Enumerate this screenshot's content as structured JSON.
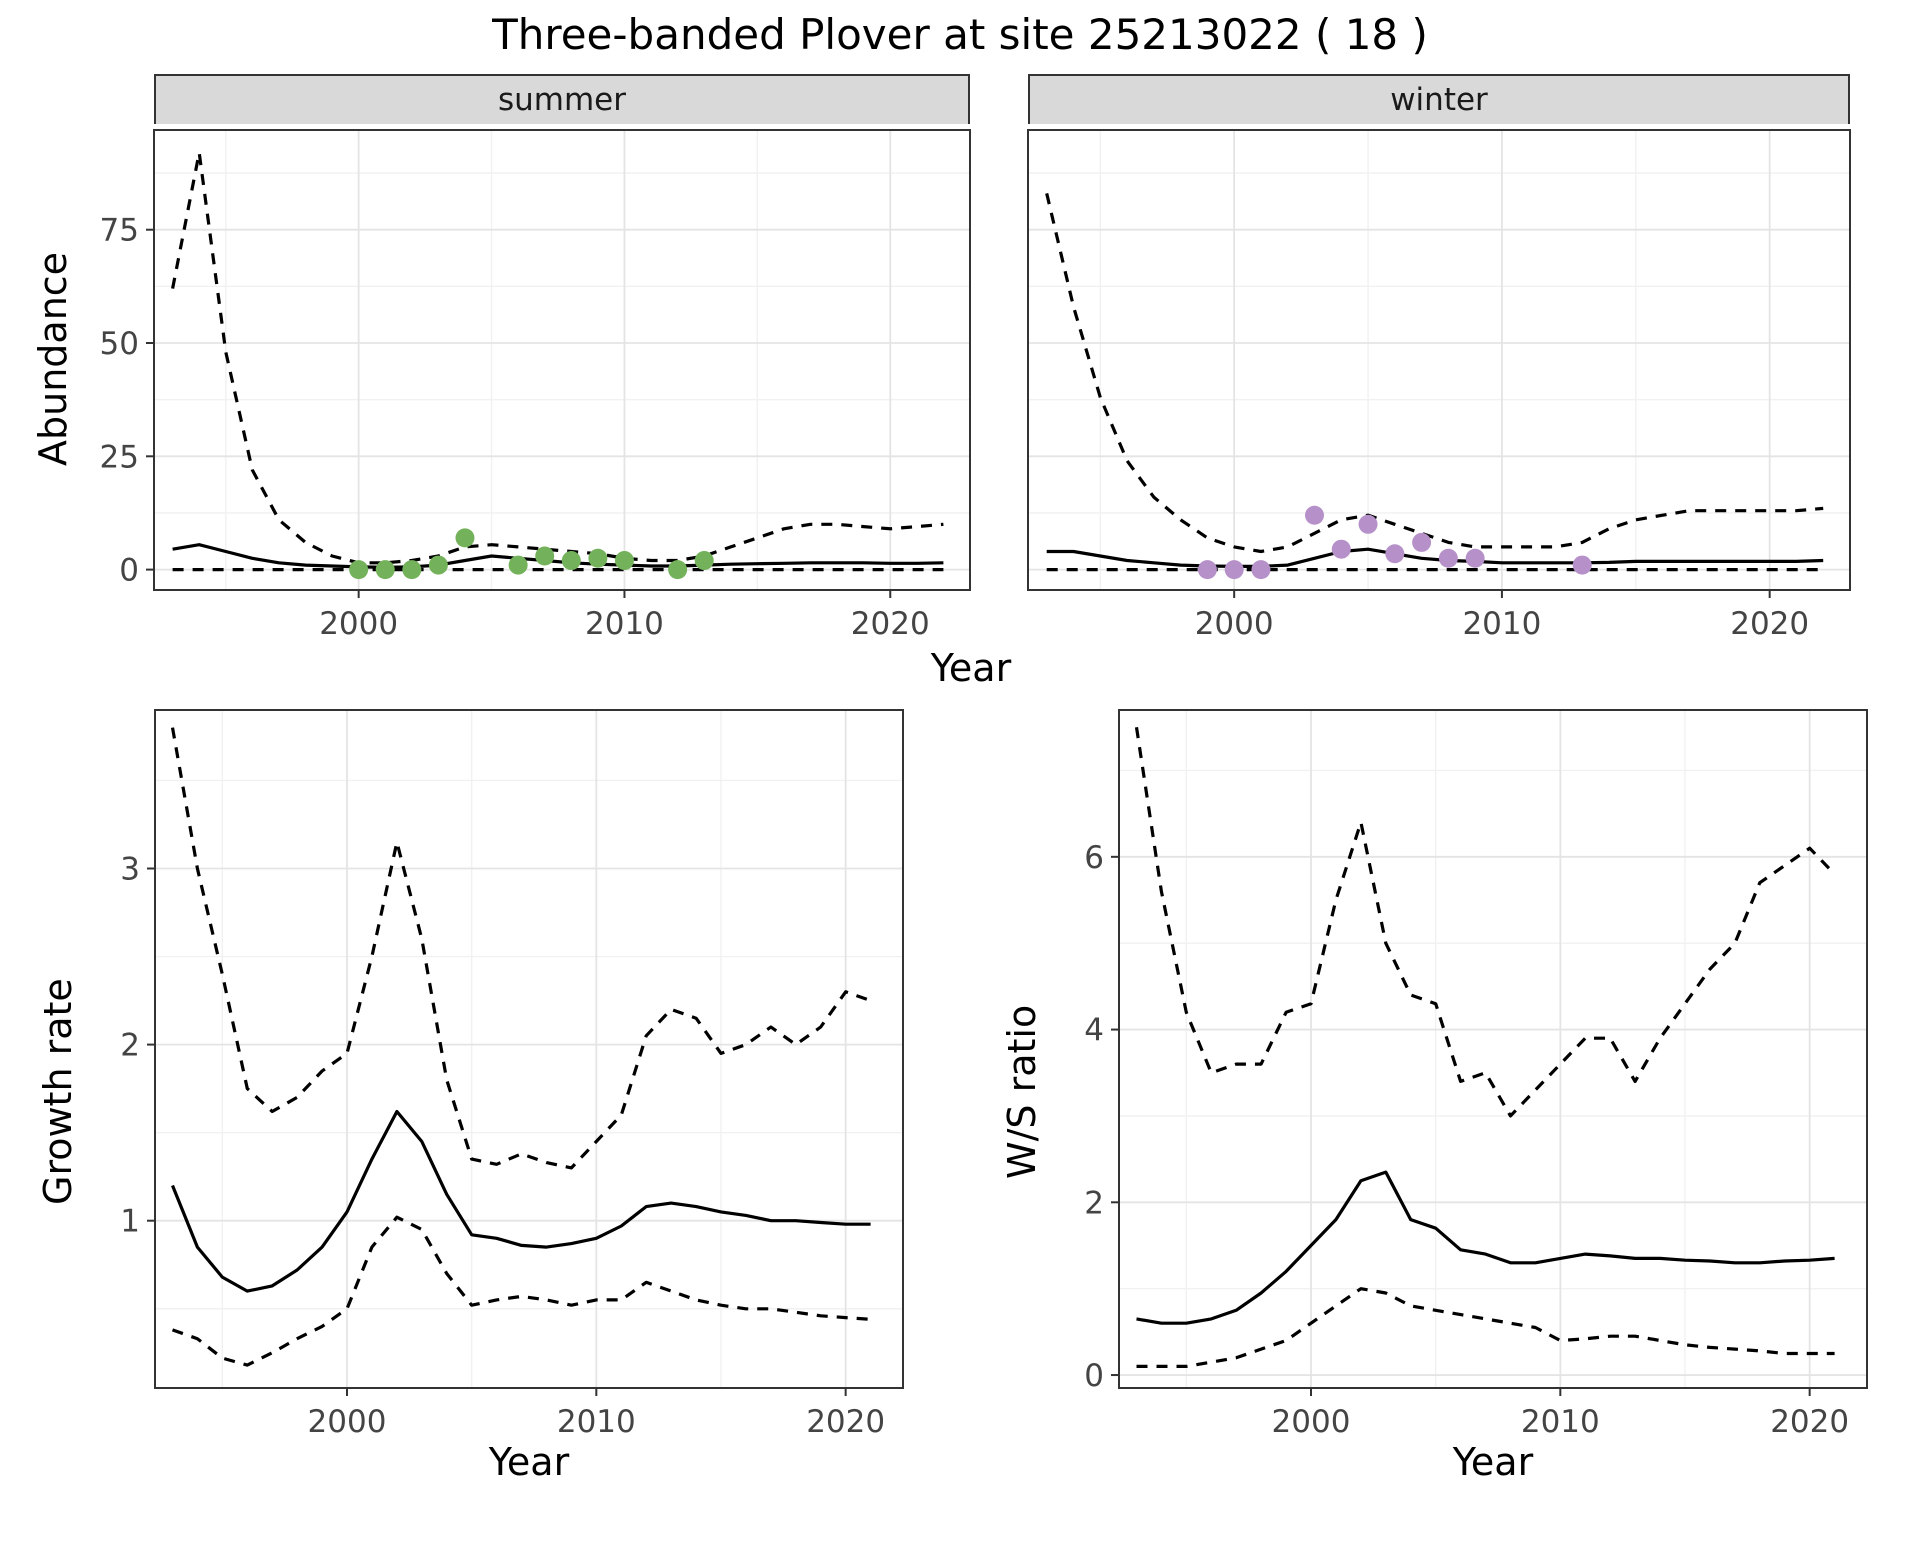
{
  "title": "Three-banded Plover at site 25213022 ( 18 )",
  "colors": {
    "line": "#000000",
    "summer_points": "#73b25a",
    "winter_points": "#b691c9",
    "grid_major": "#e4e4e4",
    "grid_minor": "#f1f1f1",
    "strip_bg": "#d9d9d9",
    "panel_border": "#333333",
    "tick_text": "#444444"
  },
  "chart_data": [
    {
      "type": "line",
      "name": "summer-abundance",
      "facet_label": "summer",
      "xlabel": "Year",
      "ylabel": "Abundance",
      "xlim": [
        1992.3,
        2023.0
      ],
      "ylim": [
        -4.5,
        97
      ],
      "xticks": [
        2000,
        2010,
        2020
      ],
      "yticks": [
        0,
        25,
        50,
        75
      ],
      "x_minor": [
        1995,
        2005,
        2015
      ],
      "y_minor": [
        12.5,
        37.5,
        62.5,
        87.5
      ],
      "show_y_tick_labels": true,
      "series": [
        {
          "name": "upper-ci",
          "style": "dashed",
          "x": [
            1993,
            1994,
            1995,
            1996,
            1997,
            1998,
            1999,
            2000,
            2001,
            2002,
            2003,
            2004,
            2005,
            2006,
            2007,
            2008,
            2009,
            2010,
            2011,
            2012,
            2013,
            2014,
            2015,
            2016,
            2017,
            2018,
            2019,
            2020,
            2021,
            2022
          ],
          "y": [
            62,
            92,
            48,
            22,
            11,
            6,
            3,
            1.5,
            1.5,
            2,
            3,
            5,
            5.5,
            5,
            4.5,
            4,
            3.5,
            2.5,
            2,
            2,
            3,
            5,
            7,
            9,
            10,
            10,
            9.5,
            9,
            9.5,
            10
          ]
        },
        {
          "name": "median",
          "style": "solid",
          "x": [
            1993,
            1994,
            1995,
            1996,
            1997,
            1998,
            1999,
            2000,
            2001,
            2002,
            2003,
            2004,
            2005,
            2006,
            2007,
            2008,
            2009,
            2010,
            2011,
            2012,
            2013,
            2014,
            2015,
            2016,
            2017,
            2018,
            2019,
            2020,
            2021,
            2022
          ],
          "y": [
            4.5,
            5.5,
            4,
            2.5,
            1.5,
            1,
            0.8,
            0.6,
            0.5,
            0.6,
            1,
            2,
            3,
            2.5,
            2,
            1.5,
            1.2,
            1,
            0.8,
            0.8,
            1,
            1.2,
            1.3,
            1.4,
            1.5,
            1.5,
            1.5,
            1.4,
            1.4,
            1.5
          ]
        },
        {
          "name": "lower-ci",
          "style": "dashed",
          "x": [
            1993,
            1994,
            1995,
            1996,
            1997,
            1998,
            1999,
            2000,
            2001,
            2002,
            2003,
            2004,
            2005,
            2006,
            2007,
            2008,
            2009,
            2010,
            2011,
            2012,
            2013,
            2014,
            2015,
            2016,
            2017,
            2018,
            2019,
            2020,
            2021,
            2022
          ],
          "y": [
            0,
            0,
            0,
            0,
            0,
            0,
            0,
            0,
            0,
            0,
            0,
            0,
            0,
            0,
            0,
            0,
            0,
            0,
            0,
            0,
            0,
            0,
            0,
            0,
            0,
            0,
            0,
            0,
            0,
            0
          ]
        },
        {
          "name": "observed-counts",
          "style": "points",
          "color": "#73b25a",
          "x": [
            2000,
            2001,
            2002,
            2003,
            2004,
            2006,
            2007,
            2008,
            2009,
            2010,
            2012,
            2013
          ],
          "y": [
            0,
            0,
            0,
            1,
            7,
            1,
            3,
            2,
            2.5,
            2,
            0,
            2
          ]
        }
      ]
    },
    {
      "type": "line",
      "name": "winter-abundance",
      "facet_label": "winter",
      "xlabel": "Year",
      "ylabel": "Abundance",
      "xlim": [
        1992.3,
        2023.0
      ],
      "ylim": [
        -4.5,
        97
      ],
      "xticks": [
        2000,
        2010,
        2020
      ],
      "yticks": [
        0,
        25,
        50,
        75
      ],
      "x_minor": [
        1995,
        2005,
        2015
      ],
      "y_minor": [
        12.5,
        37.5,
        62.5,
        87.5
      ],
      "show_y_tick_labels": false,
      "series": [
        {
          "name": "upper-ci",
          "style": "dashed",
          "x": [
            1993,
            1994,
            1995,
            1996,
            1997,
            1998,
            1999,
            2000,
            2001,
            2002,
            2003,
            2004,
            2005,
            2006,
            2007,
            2008,
            2009,
            2010,
            2011,
            2012,
            2013,
            2014,
            2015,
            2016,
            2017,
            2018,
            2019,
            2020,
            2021,
            2022
          ],
          "y": [
            83,
            58,
            38,
            24,
            16,
            11,
            7,
            5,
            4,
            5,
            8,
            11,
            12,
            10,
            8,
            6,
            5,
            5,
            5,
            5,
            6,
            9,
            11,
            12,
            13,
            13,
            13,
            13,
            13,
            13.5
          ]
        },
        {
          "name": "median",
          "style": "solid",
          "x": [
            1993,
            1994,
            1995,
            1996,
            1997,
            1998,
            1999,
            2000,
            2001,
            2002,
            2003,
            2004,
            2005,
            2006,
            2007,
            2008,
            2009,
            2010,
            2011,
            2012,
            2013,
            2014,
            2015,
            2016,
            2017,
            2018,
            2019,
            2020,
            2021,
            2022
          ],
          "y": [
            4,
            4,
            3,
            2,
            1.5,
            1,
            0.8,
            0.7,
            0.7,
            1,
            2.5,
            4,
            4.5,
            3.5,
            2.5,
            2,
            1.8,
            1.5,
            1.5,
            1.5,
            1.5,
            1.6,
            1.8,
            1.8,
            1.8,
            1.8,
            1.8,
            1.8,
            1.8,
            2
          ]
        },
        {
          "name": "lower-ci",
          "style": "dashed",
          "x": [
            1993,
            1994,
            1995,
            1996,
            1997,
            1998,
            1999,
            2000,
            2001,
            2002,
            2003,
            2004,
            2005,
            2006,
            2007,
            2008,
            2009,
            2010,
            2011,
            2012,
            2013,
            2014,
            2015,
            2016,
            2017,
            2018,
            2019,
            2020,
            2021,
            2022
          ],
          "y": [
            0,
            0,
            0,
            0,
            0,
            0,
            0,
            0,
            0,
            0,
            0,
            0,
            0,
            0,
            0,
            0,
            0,
            0,
            0,
            0,
            0,
            0,
            0,
            0,
            0,
            0,
            0,
            0,
            0,
            0
          ]
        },
        {
          "name": "observed-counts",
          "style": "points",
          "color": "#b691c9",
          "x": [
            1999,
            2000,
            2001,
            2003,
            2004,
            2005,
            2006,
            2007,
            2008,
            2009,
            2013
          ],
          "y": [
            0,
            0,
            0,
            12,
            4.5,
            10,
            3.5,
            6,
            2.5,
            2.5,
            1
          ]
        }
      ]
    },
    {
      "type": "line",
      "name": "growth-rate",
      "xlabel": "Year",
      "ylabel": "Growth rate",
      "xlim": [
        1992.3,
        2022.3
      ],
      "ylim": [
        0.05,
        3.9
      ],
      "xticks": [
        2000,
        2010,
        2020
      ],
      "yticks": [
        1,
        2,
        3
      ],
      "x_minor": [
        1995,
        2005,
        2015
      ],
      "y_minor": [
        0.5,
        1.5,
        2.5,
        3.5
      ],
      "show_y_tick_labels": true,
      "series": [
        {
          "name": "upper-ci",
          "style": "dashed",
          "x": [
            1993,
            1994,
            1995,
            1996,
            1997,
            1998,
            1999,
            2000,
            2001,
            2002,
            2003,
            2004,
            2005,
            2006,
            2007,
            2008,
            2009,
            2010,
            2011,
            2012,
            2013,
            2014,
            2015,
            2016,
            2017,
            2018,
            2019,
            2020,
            2021
          ],
          "y": [
            3.8,
            3.0,
            2.4,
            1.75,
            1.62,
            1.7,
            1.85,
            1.95,
            2.5,
            3.15,
            2.6,
            1.8,
            1.35,
            1.32,
            1.38,
            1.33,
            1.3,
            1.45,
            1.6,
            2.05,
            2.2,
            2.15,
            1.95,
            2.0,
            2.1,
            2.0,
            2.1,
            2.3,
            2.25
          ]
        },
        {
          "name": "median",
          "style": "solid",
          "x": [
            1993,
            1994,
            1995,
            1996,
            1997,
            1998,
            1999,
            2000,
            2001,
            2002,
            2003,
            2004,
            2005,
            2006,
            2007,
            2008,
            2009,
            2010,
            2011,
            2012,
            2013,
            2014,
            2015,
            2016,
            2017,
            2018,
            2019,
            2020,
            2021
          ],
          "y": [
            1.2,
            0.85,
            0.68,
            0.6,
            0.63,
            0.72,
            0.85,
            1.05,
            1.35,
            1.62,
            1.45,
            1.15,
            0.92,
            0.9,
            0.86,
            0.85,
            0.87,
            0.9,
            0.97,
            1.08,
            1.1,
            1.08,
            1.05,
            1.03,
            1.0,
            1.0,
            0.99,
            0.98,
            0.98
          ]
        },
        {
          "name": "lower-ci",
          "style": "dashed",
          "x": [
            1993,
            1994,
            1995,
            1996,
            1997,
            1998,
            1999,
            2000,
            2001,
            2002,
            2003,
            2004,
            2005,
            2006,
            2007,
            2008,
            2009,
            2010,
            2011,
            2012,
            2013,
            2014,
            2015,
            2016,
            2017,
            2018,
            2019,
            2020,
            2021
          ],
          "y": [
            0.38,
            0.33,
            0.22,
            0.18,
            0.25,
            0.33,
            0.4,
            0.5,
            0.85,
            1.02,
            0.95,
            0.7,
            0.52,
            0.55,
            0.57,
            0.55,
            0.52,
            0.55,
            0.55,
            0.65,
            0.6,
            0.55,
            0.52,
            0.5,
            0.5,
            0.48,
            0.46,
            0.45,
            0.44
          ]
        }
      ]
    },
    {
      "type": "line",
      "name": "winter-summer-ratio",
      "xlabel": "Year",
      "ylabel": "W/S ratio",
      "xlim": [
        1992.3,
        2022.3
      ],
      "ylim": [
        -0.15,
        7.7
      ],
      "xticks": [
        2000,
        2010,
        2020
      ],
      "yticks": [
        0,
        2,
        4,
        6
      ],
      "x_minor": [
        1995,
        2005,
        2015
      ],
      "y_minor": [
        1,
        3,
        5,
        7
      ],
      "show_y_tick_labels": true,
      "series": [
        {
          "name": "upper-ci",
          "style": "dashed",
          "x": [
            1993,
            1994,
            1995,
            1996,
            1997,
            1998,
            1999,
            2000,
            2001,
            2002,
            2003,
            2004,
            2005,
            2006,
            2007,
            2008,
            2009,
            2010,
            2011,
            2012,
            2013,
            2014,
            2015,
            2016,
            2017,
            2018,
            2019,
            2020,
            2021
          ],
          "y": [
            7.5,
            5.6,
            4.2,
            3.5,
            3.6,
            3.6,
            4.2,
            4.3,
            5.5,
            6.4,
            5.0,
            4.4,
            4.3,
            3.4,
            3.5,
            3.0,
            3.3,
            3.6,
            3.9,
            3.9,
            3.4,
            3.9,
            4.3,
            4.7,
            5.0,
            5.7,
            5.9,
            6.1,
            5.8
          ]
        },
        {
          "name": "median",
          "style": "solid",
          "x": [
            1993,
            1994,
            1995,
            1996,
            1997,
            1998,
            1999,
            2000,
            2001,
            2002,
            2003,
            2004,
            2005,
            2006,
            2007,
            2008,
            2009,
            2010,
            2011,
            2012,
            2013,
            2014,
            2015,
            2016,
            2017,
            2018,
            2019,
            2020,
            2021
          ],
          "y": [
            0.65,
            0.6,
            0.6,
            0.65,
            0.75,
            0.95,
            1.2,
            1.5,
            1.8,
            2.25,
            2.35,
            1.8,
            1.7,
            1.45,
            1.4,
            1.3,
            1.3,
            1.35,
            1.4,
            1.38,
            1.35,
            1.35,
            1.33,
            1.32,
            1.3,
            1.3,
            1.32,
            1.33,
            1.35
          ]
        },
        {
          "name": "lower-ci",
          "style": "dashed",
          "x": [
            1993,
            1994,
            1995,
            1996,
            1997,
            1998,
            1999,
            2000,
            2001,
            2002,
            2003,
            2004,
            2005,
            2006,
            2007,
            2008,
            2009,
            2010,
            2011,
            2012,
            2013,
            2014,
            2015,
            2016,
            2017,
            2018,
            2019,
            2020,
            2021
          ],
          "y": [
            0.1,
            0.1,
            0.1,
            0.15,
            0.2,
            0.3,
            0.4,
            0.6,
            0.8,
            1.0,
            0.95,
            0.8,
            0.75,
            0.7,
            0.65,
            0.6,
            0.55,
            0.4,
            0.42,
            0.45,
            0.45,
            0.4,
            0.35,
            0.32,
            0.3,
            0.28,
            0.25,
            0.25,
            0.25
          ]
        }
      ]
    }
  ]
}
